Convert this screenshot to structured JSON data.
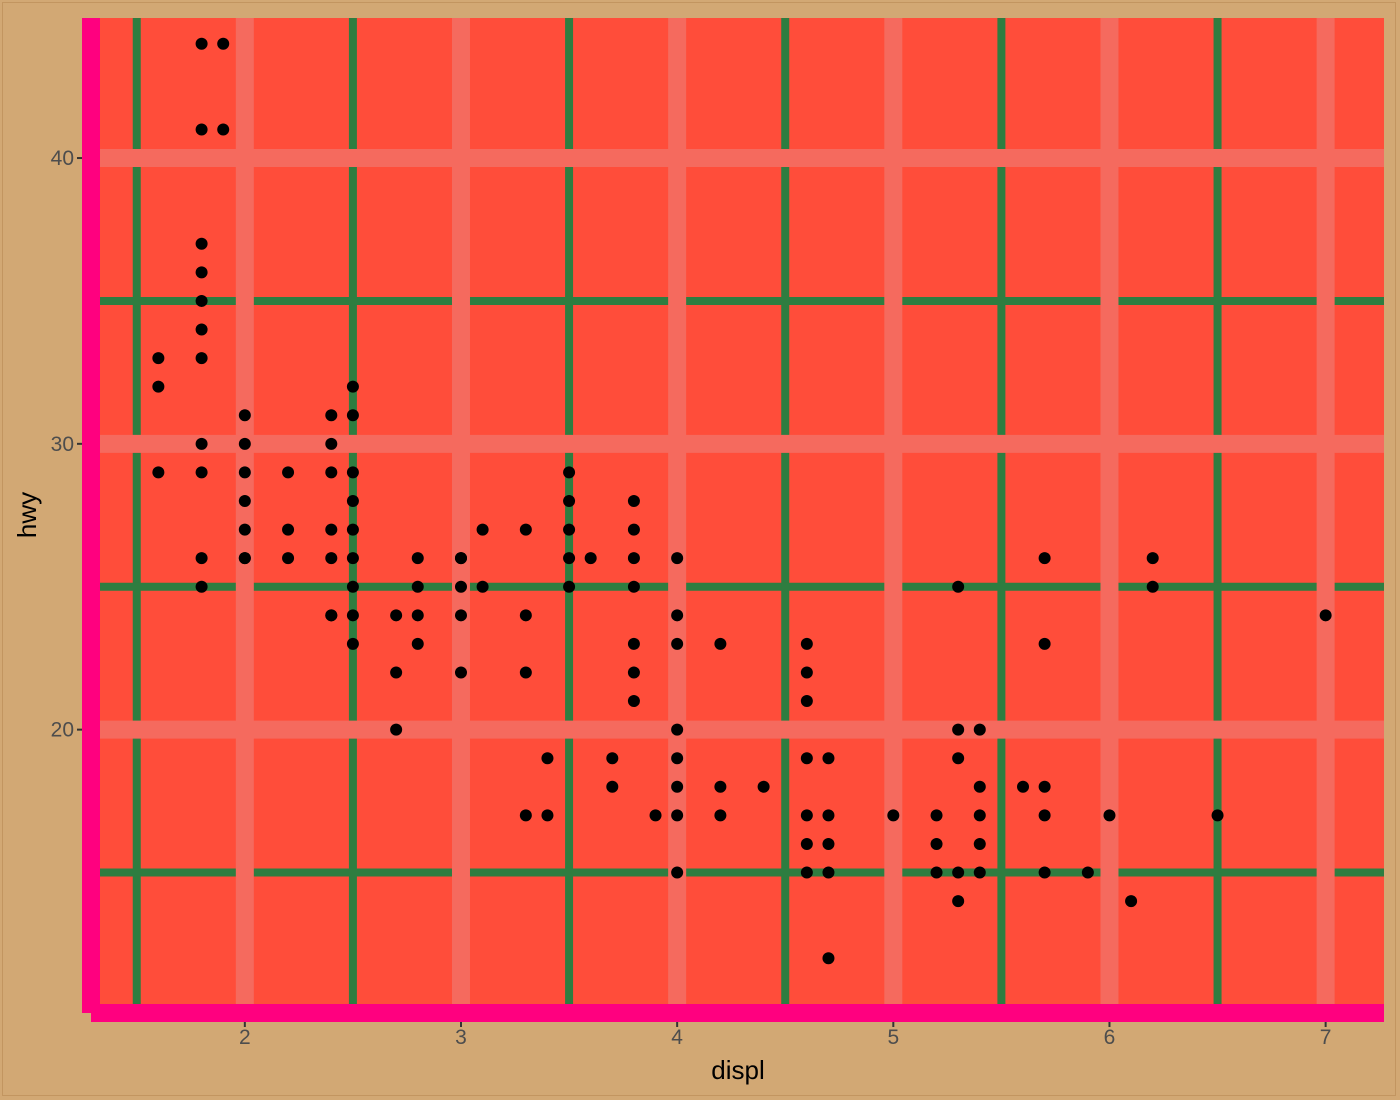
{
  "chart_data": {
    "type": "scatter",
    "title": "",
    "xlabel": "displ",
    "ylabel": "hwy",
    "xlim": [
      1.33,
      7.27
    ],
    "ylim": [
      10.4,
      44.9
    ],
    "x_ticks": [
      2,
      3,
      4,
      5,
      6,
      7
    ],
    "y_ticks": [
      20,
      30,
      40
    ],
    "grid": true,
    "legend": "none",
    "colors": {
      "background": "#d2a874",
      "panel": "#ff4d3a",
      "major_grid": "#f56a5e",
      "minor_grid": "#2e7d40",
      "axis_lines": "#ff007f",
      "points": "#000000",
      "tick_text": "#4d4d4d",
      "label_text": "#000000"
    },
    "series": [
      {
        "x": [
          1.6,
          1.6,
          1.6,
          1.8,
          1.8,
          1.8,
          1.8,
          1.8,
          1.8,
          1.8,
          1.8,
          1.8,
          1.8,
          1.8,
          1.9,
          1.9,
          2.0,
          2.0,
          2.0,
          2.0,
          2.0,
          2.0,
          2.0,
          2.2,
          2.2,
          2.2,
          2.4,
          2.4,
          2.4,
          2.4,
          2.4,
          2.4,
          2.4,
          2.5,
          2.5,
          2.5,
          2.5,
          2.5,
          2.5,
          2.5,
          2.5,
          2.5,
          2.7,
          2.7,
          2.7,
          2.8,
          2.8,
          2.8,
          2.8,
          3.0,
          3.0,
          3.0,
          3.0,
          3.0,
          3.1,
          3.1,
          3.3,
          3.3,
          3.3,
          3.3,
          3.4,
          3.4,
          3.5,
          3.5,
          3.5,
          3.5,
          3.5,
          3.6,
          3.7,
          3.7,
          3.8,
          3.8,
          3.8,
          3.8,
          3.8,
          3.8,
          3.8,
          3.9,
          4.0,
          4.0,
          4.0,
          4.0,
          4.0,
          4.0,
          4.0,
          4.0,
          4.2,
          4.2,
          4.2,
          4.4,
          4.6,
          4.6,
          4.6,
          4.6,
          4.6,
          4.6,
          4.6,
          4.7,
          4.7,
          4.7,
          4.7,
          4.7,
          5.0,
          5.2,
          5.2,
          5.2,
          5.3,
          5.3,
          5.3,
          5.3,
          5.3,
          5.4,
          5.4,
          5.4,
          5.4,
          5.4,
          5.6,
          5.7,
          5.7,
          5.7,
          5.7,
          5.7,
          5.9,
          6.0,
          6.1,
          6.2,
          6.2,
          6.5,
          7.0
        ],
        "y": [
          29,
          32,
          33,
          25,
          26,
          29,
          30,
          33,
          34,
          35,
          36,
          37,
          44,
          41,
          44,
          41,
          26,
          27,
          28,
          29,
          30,
          31,
          26,
          26,
          27,
          29,
          24,
          26,
          27,
          29,
          30,
          31,
          24,
          23,
          24,
          25,
          26,
          27,
          28,
          29,
          31,
          32,
          20,
          22,
          24,
          23,
          24,
          25,
          26,
          22,
          24,
          25,
          26,
          26,
          25,
          27,
          17,
          22,
          24,
          27,
          17,
          19,
          25,
          26,
          27,
          28,
          29,
          26,
          18,
          19,
          21,
          22,
          23,
          25,
          26,
          27,
          28,
          17,
          15,
          17,
          18,
          19,
          20,
          23,
          24,
          26,
          17,
          18,
          23,
          18,
          15,
          16,
          17,
          19,
          21,
          22,
          23,
          12,
          15,
          16,
          17,
          19,
          17,
          15,
          16,
          17,
          14,
          15,
          19,
          20,
          25,
          15,
          16,
          17,
          18,
          20,
          18,
          15,
          17,
          18,
          23,
          26,
          15,
          17,
          14,
          25,
          26,
          17,
          24
        ]
      }
    ]
  }
}
